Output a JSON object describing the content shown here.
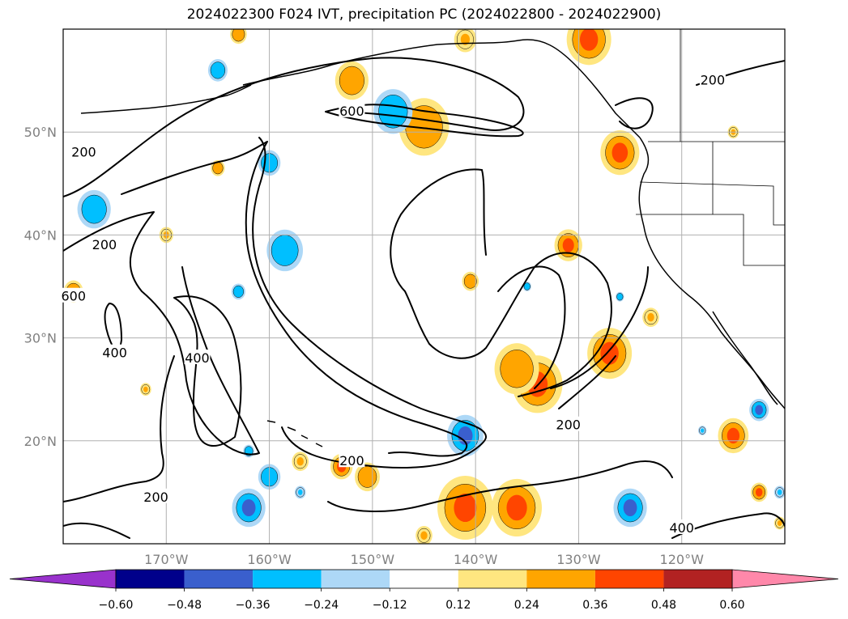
{
  "title": "2024022300 F024 IVT, precipitation PC (2024022800 - 2024022900)",
  "map": {
    "lat_labels": [
      "50°N",
      "40°N",
      "30°N",
      "20°N"
    ],
    "lon_labels": [
      "170°W",
      "160°W",
      "150°W",
      "140°W",
      "130°W",
      "120°W"
    ],
    "lon_range": [
      180,
      110
    ],
    "lat_range": [
      10,
      60
    ],
    "contour_labels": [
      {
        "text": "200",
        "lon": -178,
        "lat": 48
      },
      {
        "text": "600",
        "lon": -152,
        "lat": 52
      },
      {
        "text": "200",
        "lon": -117,
        "lat": 55
      },
      {
        "text": "200",
        "lon": -176,
        "lat": 39
      },
      {
        "text": "600",
        "lon": -179,
        "lat": 34
      },
      {
        "text": "400",
        "lon": -175,
        "lat": 28.5
      },
      {
        "text": "400",
        "lon": -167,
        "lat": 28
      },
      {
        "text": "200",
        "lon": -131,
        "lat": 21.5
      },
      {
        "text": "200",
        "lon": -152,
        "lat": 18
      },
      {
        "text": "200",
        "lon": -171,
        "lat": 14.5
      },
      {
        "text": "400",
        "lon": -120,
        "lat": 11.5
      }
    ]
  },
  "colorbar": {
    "ticks": [
      "−0.60",
      "−0.48",
      "−0.36",
      "−0.24",
      "−0.12",
      "0.12",
      "0.24",
      "0.36",
      "0.48",
      "0.60"
    ],
    "colors": [
      "#9932cc",
      "#00008b",
      "#3a5fcd",
      "#00bfff",
      "#add8f7",
      "#ffffff",
      "#ffe680",
      "#ffa500",
      "#ff4500",
      "#b22222",
      "#ff88aa"
    ]
  },
  "precip_patches": [
    {
      "lon": -141,
      "lat": 13.5,
      "r": 2.0,
      "color": "#ffa500",
      "core": "#ff4500"
    },
    {
      "lon": -136,
      "lat": 13.5,
      "r": 1.8,
      "color": "#ffa500",
      "core": "#ff4500"
    },
    {
      "lon": -134,
      "lat": 25.5,
      "r": 1.8,
      "color": "#ffa500",
      "core": "#ff4500"
    },
    {
      "lon": -136,
      "lat": 27,
      "r": 1.6,
      "color": "#ffa500",
      "core": "#ffa500"
    },
    {
      "lon": -127,
      "lat": 28.5,
      "r": 1.6,
      "color": "#ffa500",
      "core": "#ff4500"
    },
    {
      "lon": -131,
      "lat": 39,
      "r": 1.0,
      "color": "#ffa500",
      "core": "#ff4500"
    },
    {
      "lon": -145,
      "lat": 50.5,
      "r": 1.8,
      "color": "#ffa500",
      "core": "#ffa500"
    },
    {
      "lon": -152,
      "lat": 55,
      "r": 1.2,
      "color": "#ffa500",
      "core": "#ffa500"
    },
    {
      "lon": -129,
      "lat": 59,
      "r": 1.6,
      "color": "#ffa500",
      "core": "#ff4500"
    },
    {
      "lon": -126,
      "lat": 48,
      "r": 1.4,
      "color": "#ffa500",
      "core": "#ff4500"
    },
    {
      "lon": -115,
      "lat": 20.5,
      "r": 1.1,
      "color": "#ffa500",
      "core": "#ff4500"
    },
    {
      "lon": -150.5,
      "lat": 16.5,
      "r": 0.9,
      "color": "#ffa500",
      "core": "#ffa500"
    },
    {
      "lon": -153,
      "lat": 17.5,
      "r": 0.8,
      "color": "#ffa500",
      "core": "#ff4500"
    },
    {
      "lon": -140.5,
      "lat": 35.5,
      "r": 0.6,
      "color": "#ffa500",
      "core": "#ffa500"
    },
    {
      "lon": -179,
      "lat": 34.5,
      "r": 0.7,
      "color": "#ffa500",
      "core": "#ffa500"
    },
    {
      "lon": -163,
      "lat": 59.5,
      "r": 0.6,
      "color": "#ffa500",
      "core": "#ffa500"
    },
    {
      "lon": -112.5,
      "lat": 15,
      "r": 0.6,
      "color": "#ffa500",
      "core": "#ff4500"
    },
    {
      "lon": -165,
      "lat": 46.5,
      "r": 0.5,
      "color": "#ffa500",
      "core": "#ffa500"
    },
    {
      "lon": -123,
      "lat": 32,
      "r": 0.6,
      "color": "#ffe680",
      "core": "#ffa500"
    },
    {
      "lon": -157,
      "lat": 18,
      "r": 0.6,
      "color": "#ffe680",
      "core": "#ffa500"
    },
    {
      "lon": -170,
      "lat": 40,
      "r": 0.5,
      "color": "#ffe680",
      "core": "#ffa500"
    },
    {
      "lon": -172,
      "lat": 25,
      "r": 0.4,
      "color": "#ffe680",
      "core": "#ffa500"
    },
    {
      "lon": -141,
      "lat": 59,
      "r": 0.8,
      "color": "#ffe680",
      "core": "#ffa500"
    },
    {
      "lon": -115,
      "lat": 50,
      "r": 0.4,
      "color": "#ffe680",
      "core": "#ffa500"
    },
    {
      "lon": -145,
      "lat": 10.8,
      "r": 0.6,
      "color": "#ffe680",
      "core": "#ffa500"
    },
    {
      "lon": -110.5,
      "lat": 12,
      "r": 0.4,
      "color": "#ffe680",
      "core": "#ffa500"
    },
    {
      "lon": -162,
      "lat": 13.5,
      "r": 1.2,
      "color": "#00bfff",
      "core": "#3a5fcd"
    },
    {
      "lon": -158.5,
      "lat": 38.5,
      "r": 1.3,
      "color": "#00bfff",
      "core": "#00bfff"
    },
    {
      "lon": -141,
      "lat": 20.5,
      "r": 1.3,
      "color": "#00bfff",
      "core": "#3a5fcd"
    },
    {
      "lon": -125,
      "lat": 13.5,
      "r": 1.2,
      "color": "#00bfff",
      "core": "#3a5fcd"
    },
    {
      "lon": -148,
      "lat": 52,
      "r": 1.4,
      "color": "#00bfff",
      "core": "#00bfff"
    },
    {
      "lon": -160,
      "lat": 16.5,
      "r": 0.8,
      "color": "#00bfff",
      "core": "#00bfff"
    },
    {
      "lon": -163,
      "lat": 34.5,
      "r": 0.5,
      "color": "#00bfff",
      "core": "#00bfff"
    },
    {
      "lon": -160,
      "lat": 47,
      "r": 0.8,
      "color": "#00bfff",
      "core": "#00bfff"
    },
    {
      "lon": -177,
      "lat": 42.5,
      "r": 1.2,
      "color": "#00bfff",
      "core": "#00bfff"
    },
    {
      "lon": -165,
      "lat": 56,
      "r": 0.7,
      "color": "#00bfff",
      "core": "#00bfff"
    },
    {
      "lon": -112.5,
      "lat": 23,
      "r": 0.7,
      "color": "#00bfff",
      "core": "#3a5fcd"
    },
    {
      "lon": -162,
      "lat": 19,
      "r": 0.4,
      "color": "#00bfff",
      "core": "#00bfff"
    },
    {
      "lon": -135,
      "lat": 35,
      "r": 0.3,
      "color": "#00bfff",
      "core": "#00bfff"
    },
    {
      "lon": -126,
      "lat": 34,
      "r": 0.3,
      "color": "#00bfff",
      "core": "#00bfff"
    },
    {
      "lon": -157,
      "lat": 15,
      "r": 0.4,
      "color": "#add8f7",
      "core": "#00bfff"
    },
    {
      "lon": -110.5,
      "lat": 15,
      "r": 0.4,
      "color": "#add8f7",
      "core": "#00bfff"
    },
    {
      "lon": -118,
      "lat": 21,
      "r": 0.3,
      "color": "#add8f7",
      "core": "#00bfff"
    }
  ]
}
